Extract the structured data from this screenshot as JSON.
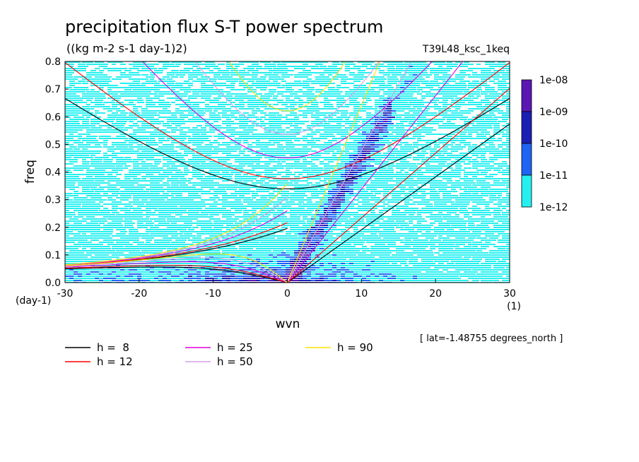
{
  "chart_data": {
    "type": "heatmap",
    "title": "precipitation flux S-T power spectrum",
    "units": "((kg m-2 s-1 day-1)2)",
    "experiment": "T39L48_ksc_1keq",
    "xlabel": "wvn",
    "ylabel": "freq",
    "x_unit": "(1)",
    "y_unit": "(day-1)",
    "xlim": [
      -30,
      30
    ],
    "ylim": [
      0,
      0.8
    ],
    "xticks": [
      "-30",
      "-20",
      "-10",
      "0",
      "10",
      "20",
      "30"
    ],
    "yticks": [
      "0.0",
      "0.1",
      "0.2",
      "0.3",
      "0.4",
      "0.5",
      "0.6",
      "0.7",
      "0.8"
    ],
    "colorbar": {
      "labels": [
        "1e-08",
        "1e-09",
        "1e-10",
        "1e-11",
        "1e-12"
      ],
      "colors": [
        "#5b17b3",
        "#1c1fb3",
        "#1f64f2",
        "#25f0f0"
      ]
    },
    "note": "[ lat=-1.48755 degrees_north ]",
    "dispersion_curves": [
      {
        "name": "h =  8",
        "color": "#000000"
      },
      {
        "name": "h = 12",
        "color": "#ff0000"
      },
      {
        "name": "h = 25",
        "color": "#e000e0"
      },
      {
        "name": "h = 50",
        "color": "#d8a0e8"
      },
      {
        "name": "h = 90",
        "color": "#ffe000"
      }
    ]
  }
}
